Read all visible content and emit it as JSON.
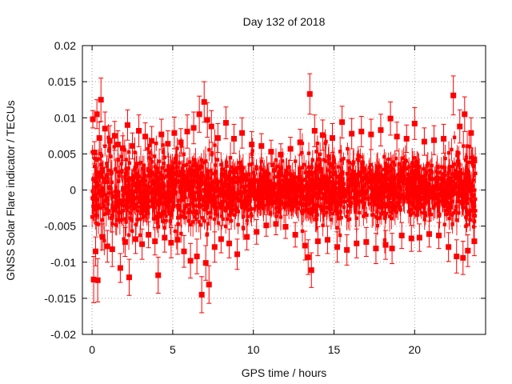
{
  "chart_data": {
    "type": "scatter",
    "title": "Day 132 of 2018",
    "xlabel": "GPS time / hours",
    "ylabel": "GNSS Solar Flare indicator / TECUs",
    "xlim": [
      -0.6,
      24.4
    ],
    "ylim": [
      -0.02,
      0.02
    ],
    "grid": true,
    "series_color": "#ff0000",
    "grid_color": "#a0a0a0",
    "x_ticks": [
      {
        "value": 0,
        "label": "0"
      },
      {
        "value": 5,
        "label": "5"
      },
      {
        "value": 10,
        "label": "10"
      },
      {
        "value": 15,
        "label": "15"
      },
      {
        "value": 20,
        "label": "20"
      }
    ],
    "y_ticks": [
      {
        "value": 0.02,
        "label": "0.02"
      },
      {
        "value": 0.015,
        "label": "0.015"
      },
      {
        "value": 0.01,
        "label": "0.01"
      },
      {
        "value": 0.005,
        "label": "0.005"
      },
      {
        "value": 0,
        "label": "0"
      },
      {
        "value": -0.005,
        "label": "-0.005"
      },
      {
        "value": -0.01,
        "label": "-0.01"
      },
      {
        "value": -0.015,
        "label": "-0.015"
      },
      {
        "value": -0.02,
        "label": "-0.02"
      }
    ],
    "points": [
      {
        "x": 0.05,
        "y": 0.0098,
        "err": 0.0012
      },
      {
        "x": 0.1,
        "y": -0.0124,
        "err": 0.0032
      },
      {
        "x": 0.15,
        "y": 0.0052,
        "err": 0.0015
      },
      {
        "x": 0.22,
        "y": -0.0085,
        "err": 0.002
      },
      {
        "x": 0.3,
        "y": 0.0105,
        "err": 0.002
      },
      {
        "x": 0.35,
        "y": -0.0125,
        "err": 0.003
      },
      {
        "x": 0.45,
        "y": 0.0072,
        "err": 0.0022
      },
      {
        "x": 0.55,
        "y": 0.0125,
        "err": 0.003
      },
      {
        "x": 0.65,
        "y": -0.0065,
        "err": 0.0018
      },
      {
        "x": 0.8,
        "y": 0.0085,
        "err": 0.0023
      },
      {
        "x": 0.95,
        "y": -0.0078,
        "err": 0.0022
      },
      {
        "x": 1.1,
        "y": 0.0068,
        "err": 0.0021
      },
      {
        "x": 1.25,
        "y": -0.0082,
        "err": 0.0024
      },
      {
        "x": 1.4,
        "y": 0.0075,
        "err": 0.002
      },
      {
        "x": 1.6,
        "y": 0.0063,
        "err": 0.0019
      },
      {
        "x": 1.75,
        "y": -0.0108,
        "err": 0.002
      },
      {
        "x": 1.9,
        "y": 0.0058,
        "err": 0.0017
      },
      {
        "x": 2.05,
        "y": -0.0072,
        "err": 0.002
      },
      {
        "x": 2.2,
        "y": 0.009,
        "err": 0.0021
      },
      {
        "x": 2.3,
        "y": -0.0121,
        "err": 0.0025
      },
      {
        "x": 2.5,
        "y": 0.0061,
        "err": 0.0018
      },
      {
        "x": 2.7,
        "y": -0.0068,
        "err": 0.002
      },
      {
        "x": 2.9,
        "y": 0.0082,
        "err": 0.0022
      },
      {
        "x": 3.1,
        "y": -0.0075,
        "err": 0.0021
      },
      {
        "x": 3.3,
        "y": 0.0074,
        "err": 0.0019
      },
      {
        "x": 3.5,
        "y": -0.0062,
        "err": 0.0018
      },
      {
        "x": 3.7,
        "y": 0.0068,
        "err": 0.002
      },
      {
        "x": 3.9,
        "y": -0.0071,
        "err": 0.0019
      },
      {
        "x": 4.1,
        "y": -0.0118,
        "err": 0.0025
      },
      {
        "x": 4.3,
        "y": 0.0077,
        "err": 0.0021
      },
      {
        "x": 4.5,
        "y": -0.0066,
        "err": 0.002
      },
      {
        "x": 4.7,
        "y": 0.0064,
        "err": 0.0018
      },
      {
        "x": 4.9,
        "y": -0.0073,
        "err": 0.0021
      },
      {
        "x": 5.1,
        "y": 0.0079,
        "err": 0.0022
      },
      {
        "x": 5.3,
        "y": -0.0069,
        "err": 0.002
      },
      {
        "x": 5.5,
        "y": 0.0066,
        "err": 0.0019
      },
      {
        "x": 5.7,
        "y": -0.0085,
        "err": 0.0022
      },
      {
        "x": 5.9,
        "y": 0.0081,
        "err": 0.0023
      },
      {
        "x": 6.1,
        "y": -0.0098,
        "err": 0.0024
      },
      {
        "x": 6.3,
        "y": 0.0086,
        "err": 0.0022
      },
      {
        "x": 6.5,
        "y": -0.0092,
        "err": 0.0024
      },
      {
        "x": 6.65,
        "y": 0.0105,
        "err": 0.0025
      },
      {
        "x": 6.8,
        "y": -0.0145,
        "err": 0.0025
      },
      {
        "x": 6.95,
        "y": 0.0122,
        "err": 0.0028
      },
      {
        "x": 7.05,
        "y": -0.0101,
        "err": 0.0024
      },
      {
        "x": 7.15,
        "y": 0.0097,
        "err": 0.0024
      },
      {
        "x": 7.25,
        "y": -0.0131,
        "err": 0.0026
      },
      {
        "x": 7.4,
        "y": 0.0088,
        "err": 0.0022
      },
      {
        "x": 7.6,
        "y": -0.0079,
        "err": 0.0021
      },
      {
        "x": 7.8,
        "y": 0.0072,
        "err": 0.002
      },
      {
        "x": 8.0,
        "y": -0.0068,
        "err": 0.0019
      },
      {
        "x": 8.3,
        "y": 0.0093,
        "err": 0.0022
      },
      {
        "x": 8.5,
        "y": -0.0074,
        "err": 0.002
      },
      {
        "x": 8.8,
        "y": 0.0071,
        "err": 0.002
      },
      {
        "x": 9.0,
        "y": -0.0089,
        "err": 0.0021
      },
      {
        "x": 9.3,
        "y": 0.0079,
        "err": 0.0021
      },
      {
        "x": 9.6,
        "y": -0.0065,
        "err": 0.0018
      },
      {
        "x": 9.9,
        "y": 0.0063,
        "err": 0.0018
      },
      {
        "x": 10.2,
        "y": -0.0058,
        "err": 0.0017
      },
      {
        "x": 10.5,
        "y": 0.0061,
        "err": 0.0017
      },
      {
        "x": 10.8,
        "y": -0.0049,
        "err": 0.0015
      },
      {
        "x": 11.1,
        "y": 0.0053,
        "err": 0.0016
      },
      {
        "x": 11.4,
        "y": -0.0047,
        "err": 0.0015
      },
      {
        "x": 11.7,
        "y": 0.0049,
        "err": 0.0015
      },
      {
        "x": 12.0,
        "y": -0.0051,
        "err": 0.0016
      },
      {
        "x": 12.3,
        "y": 0.0057,
        "err": 0.0016
      },
      {
        "x": 12.6,
        "y": -0.0062,
        "err": 0.0017
      },
      {
        "x": 12.9,
        "y": 0.0066,
        "err": 0.0018
      },
      {
        "x": 13.2,
        "y": -0.0077,
        "err": 0.002
      },
      {
        "x": 13.4,
        "y": -0.0093,
        "err": 0.0024
      },
      {
        "x": 13.5,
        "y": 0.0133,
        "err": 0.0028
      },
      {
        "x": 13.6,
        "y": -0.0111,
        "err": 0.0024
      },
      {
        "x": 13.8,
        "y": 0.0082,
        "err": 0.0022
      },
      {
        "x": 14.0,
        "y": -0.0071,
        "err": 0.002
      },
      {
        "x": 14.3,
        "y": 0.0076,
        "err": 0.0021
      },
      {
        "x": 14.6,
        "y": -0.0069,
        "err": 0.0019
      },
      {
        "x": 14.9,
        "y": 0.0072,
        "err": 0.002
      },
      {
        "x": 15.2,
        "y": -0.0079,
        "err": 0.0021
      },
      {
        "x": 15.5,
        "y": 0.0094,
        "err": 0.0022
      },
      {
        "x": 15.8,
        "y": -0.0083,
        "err": 0.0021
      },
      {
        "x": 16.1,
        "y": 0.0078,
        "err": 0.0021
      },
      {
        "x": 16.4,
        "y": -0.0074,
        "err": 0.002
      },
      {
        "x": 16.7,
        "y": 0.0081,
        "err": 0.0021
      },
      {
        "x": 17.0,
        "y": -0.0072,
        "err": 0.002
      },
      {
        "x": 17.3,
        "y": 0.0077,
        "err": 0.0021
      },
      {
        "x": 17.6,
        "y": -0.0081,
        "err": 0.0021
      },
      {
        "x": 17.9,
        "y": 0.0083,
        "err": 0.0022
      },
      {
        "x": 18.2,
        "y": -0.0076,
        "err": 0.002
      },
      {
        "x": 18.5,
        "y": 0.0099,
        "err": 0.0023
      },
      {
        "x": 18.6,
        "y": -0.0081,
        "err": 0.0021
      },
      {
        "x": 18.9,
        "y": 0.0074,
        "err": 0.002
      },
      {
        "x": 19.2,
        "y": -0.0063,
        "err": 0.0018
      },
      {
        "x": 19.5,
        "y": 0.0071,
        "err": 0.0019
      },
      {
        "x": 19.8,
        "y": -0.0067,
        "err": 0.0018
      },
      {
        "x": 20.0,
        "y": 0.0092,
        "err": 0.0022
      },
      {
        "x": 20.3,
        "y": -0.0066,
        "err": 0.0019
      },
      {
        "x": 20.6,
        "y": 0.0067,
        "err": 0.0019
      },
      {
        "x": 20.9,
        "y": -0.0061,
        "err": 0.0018
      },
      {
        "x": 21.2,
        "y": 0.0069,
        "err": 0.002
      },
      {
        "x": 21.5,
        "y": -0.0063,
        "err": 0.0018
      },
      {
        "x": 21.8,
        "y": 0.0071,
        "err": 0.002
      },
      {
        "x": 22.1,
        "y": -0.0079,
        "err": 0.002
      },
      {
        "x": 22.4,
        "y": 0.0131,
        "err": 0.0027
      },
      {
        "x": 22.6,
        "y": -0.0092,
        "err": 0.0023
      },
      {
        "x": 22.8,
        "y": 0.0088,
        "err": 0.0023
      },
      {
        "x": 23.0,
        "y": -0.0094,
        "err": 0.0023
      },
      {
        "x": 23.1,
        "y": 0.0105,
        "err": 0.0024
      },
      {
        "x": 23.3,
        "y": -0.0084,
        "err": 0.0022
      },
      {
        "x": 23.5,
        "y": 0.0079,
        "err": 0.0021
      },
      {
        "x": 23.7,
        "y": -0.0071,
        "err": 0.002
      }
    ]
  }
}
